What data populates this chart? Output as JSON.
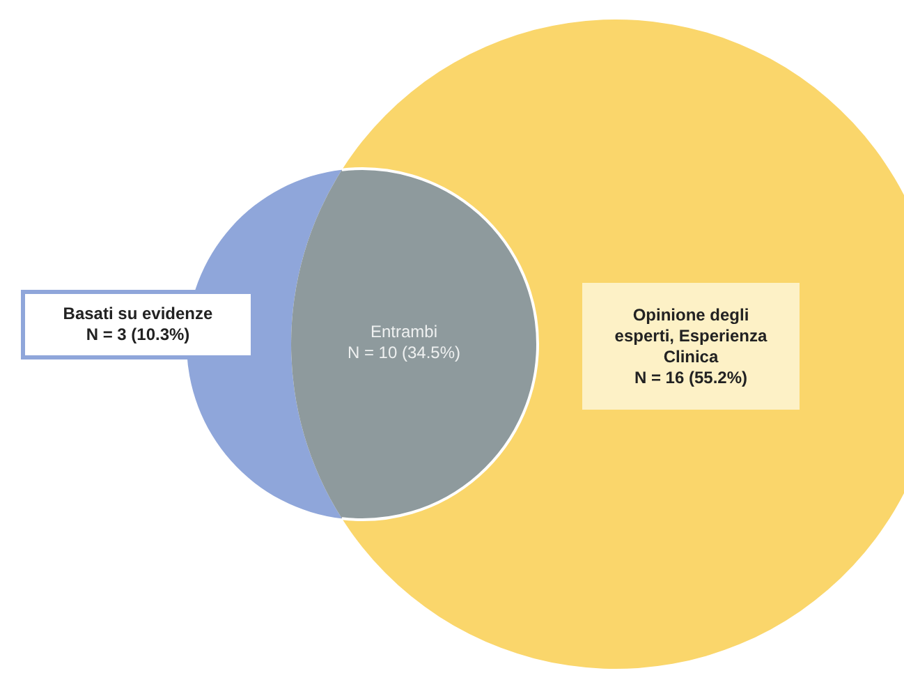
{
  "chart_data": {
    "type": "other",
    "categories": [
      "Basati su evidenze",
      "Entrambi",
      "Opinione degli esperti, Esperienza Clinica"
    ],
    "values": [
      3,
      10,
      16
    ],
    "value_labels": [
      "N = 3 (10.3%)",
      "N = 10 (34.5%)",
      "N = 16 (55.2%)"
    ],
    "colors": [
      "#8fa6da",
      "#8e9a9d",
      "#fad66b"
    ]
  }
}
